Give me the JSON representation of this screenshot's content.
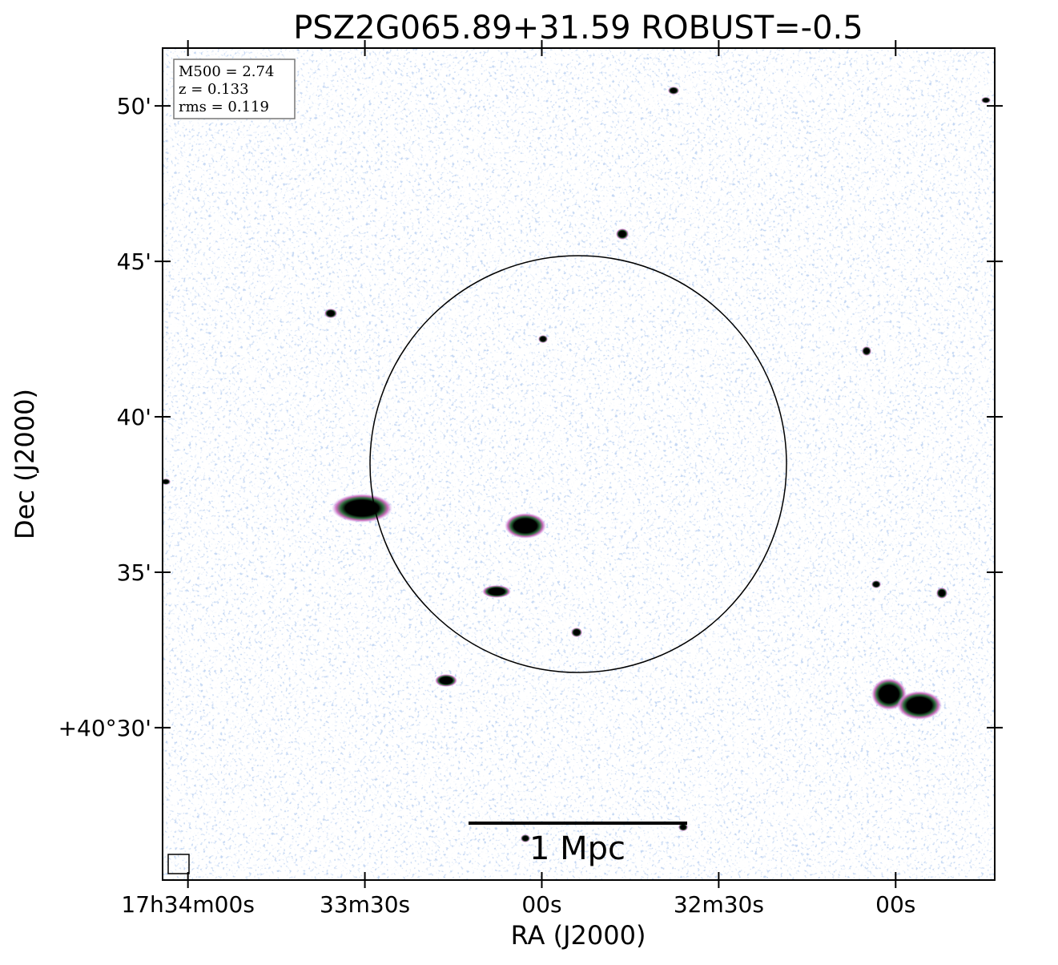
{
  "chart_data": {
    "type": "image",
    "title": "PSZ2G065.89+31.59 ROBUST=-0.5",
    "xlabel": "RA (J2000)",
    "ylabel": "Dec (J2000)",
    "xlim": [
      62044.3,
      61903.2
    ],
    "xticks": [
      {
        "value": 62040,
        "label": "17h34m00s"
      },
      {
        "value": 62010,
        "label": "33m30s"
      },
      {
        "value": 61980,
        "label": "00s"
      },
      {
        "value": 61950,
        "label": "32m30s"
      },
      {
        "value": 61920,
        "label": "00s"
      }
    ],
    "ylim": [
      25.1,
      51.86
    ],
    "yticks": [
      {
        "value": 50,
        "label": "50'"
      },
      {
        "value": 45,
        "label": "45'"
      },
      {
        "value": 40,
        "label": "40'"
      },
      {
        "value": 35,
        "label": "35'"
      },
      {
        "value": 30,
        "label": "+40°30'"
      }
    ],
    "annotations": [
      "M500 = 2.74",
      "z = 0.133",
      "rms = 0.119"
    ],
    "scale_bar_label": "1 Mpc"
  }
}
